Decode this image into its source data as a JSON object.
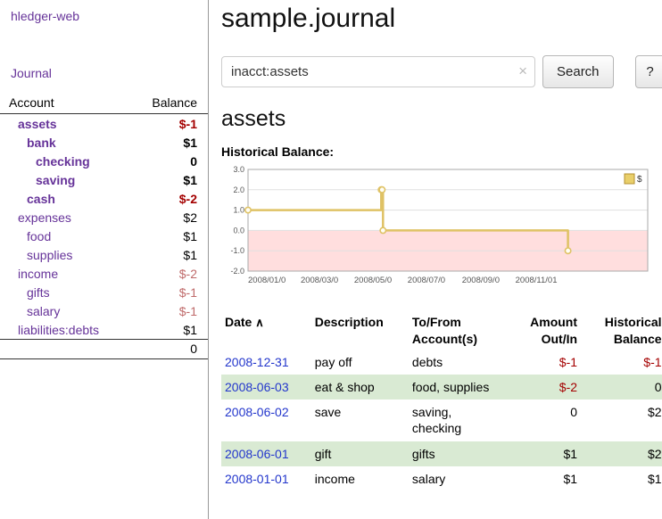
{
  "colors": {
    "accent-purple": "#663399",
    "link-blue": "#2336cc",
    "neg-strong": "#a40000",
    "neg-soft": "#bf6a6a",
    "row-green": "#d9ead3",
    "chart-line": "#dfc265",
    "chart-legend-fill": "#e9cf6a",
    "chart-negative-fill": "#ffdede"
  },
  "app": {
    "title": "hledger-web"
  },
  "icons": {
    "sort_asc_icon": "∧",
    "clear_search_icon": "×"
  },
  "sidebar": {
    "journal_link": "Journal",
    "accounts": {
      "header_account": "Account",
      "header_balance": "Balance",
      "rows": [
        {
          "name": "assets",
          "balance": "$-1",
          "indent": 0,
          "bold": true,
          "name_negative": true,
          "balance_negative": true
        },
        {
          "name": "bank",
          "balance": "$1",
          "indent": 1,
          "bold": true
        },
        {
          "name": "checking",
          "balance": "0",
          "indent": 2,
          "bold": true
        },
        {
          "name": "saving",
          "balance": "$1",
          "indent": 2,
          "bold": true
        },
        {
          "name": "cash",
          "balance": "$-2",
          "indent": 1,
          "bold": true,
          "name_negative": true,
          "balance_negative": true
        },
        {
          "name": "expenses",
          "balance": "$2",
          "indent": 0
        },
        {
          "name": "food",
          "balance": "$1",
          "indent": 1
        },
        {
          "name": "supplies",
          "balance": "$1",
          "indent": 1
        },
        {
          "name": "income",
          "balance": "$-2",
          "indent": 0,
          "balance_negative_soft": true
        },
        {
          "name": "gifts",
          "balance": "$-1",
          "indent": 1,
          "balance_negative_soft": true
        },
        {
          "name": "salary",
          "balance": "$-1",
          "indent": 1,
          "balance_negative_soft": true
        },
        {
          "name": "liabilities:debts",
          "balance": "$1",
          "indent": 0
        }
      ],
      "total": "0"
    }
  },
  "main": {
    "title": "sample.journal",
    "search": {
      "value": "inacct:assets",
      "button_label": "Search",
      "help_label": "?"
    },
    "account_heading": "assets",
    "register": {
      "columns": [
        "Date",
        "Description",
        "To/From Account(s)",
        "Amount Out/In",
        "Historical Balance"
      ],
      "rows": [
        {
          "date": "2008-12-31",
          "description": "pay off",
          "accounts": "debts",
          "amount": "$-1",
          "balance": "$-1",
          "amount_negative": true,
          "balance_negative": true
        },
        {
          "date": "2008-06-03",
          "description": "eat & shop",
          "accounts": "food, supplies",
          "amount": "$-2",
          "balance": "0",
          "amount_negative": true
        },
        {
          "date": "2008-06-02",
          "description": "save",
          "accounts": "saving, checking",
          "amount": "0",
          "balance": "$2"
        },
        {
          "date": "2008-06-01",
          "description": "gift",
          "accounts": "gifts",
          "amount": "$1",
          "balance": "$2"
        },
        {
          "date": "2008-01-01",
          "description": "income",
          "accounts": "salary",
          "amount": "$1",
          "balance": "$1"
        }
      ]
    }
  },
  "chart_data": {
    "type": "line",
    "title": "Historical Balance:",
    "ylim": [
      -2,
      3
    ],
    "yticks": [
      3.0,
      2.0,
      1.0,
      0.0,
      -1.0,
      -2.0
    ],
    "xrange": [
      "2008-01-01",
      "2009-04-01"
    ],
    "xticks": [
      {
        "label": "2008/01/0",
        "date": "2008-01-01"
      },
      {
        "label": "2008/03/0",
        "date": "2008-03-01"
      },
      {
        "label": "2008/05/0",
        "date": "2008-05-01"
      },
      {
        "label": "2008/07/0",
        "date": "2008-07-01"
      },
      {
        "label": "2008/09/0",
        "date": "2008-09-01"
      },
      {
        "label": "2008/11/01",
        "date": "2008-11-01"
      }
    ],
    "legend_position": "top-right",
    "grid": "horizontal",
    "series": [
      {
        "name": "$",
        "points": [
          {
            "x": "2008-01-01",
            "y": 1
          },
          {
            "x": "2008-06-01",
            "y": 2
          },
          {
            "x": "2008-06-02",
            "y": 2
          },
          {
            "x": "2008-06-03",
            "y": 0
          },
          {
            "x": "2008-12-31",
            "y": -1
          }
        ]
      }
    ]
  }
}
